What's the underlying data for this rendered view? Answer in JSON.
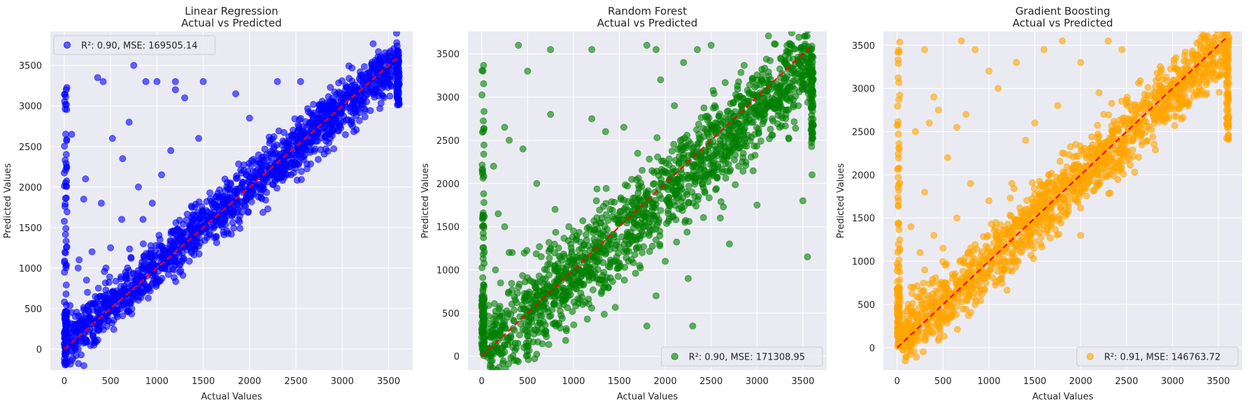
{
  "chart_data": [
    {
      "type": "scatter",
      "title": "Linear Regression\nActual vs Predicted",
      "xlabel": "Actual Values",
      "ylabel": "Predicted Values",
      "xlim": [
        -150,
        3760
      ],
      "ylim": [
        -260,
        3920
      ],
      "xticks": [
        0,
        500,
        1000,
        1500,
        2000,
        2500,
        3000,
        3500
      ],
      "yticks": [
        0,
        500,
        1000,
        1500,
        2000,
        2500,
        3000,
        3500
      ],
      "grid": true,
      "legend_position": "upper left",
      "series": [
        {
          "name": "R²: 0.90, MSE: 169505.14",
          "color": "#0000ff",
          "trend": {
            "slope": 0.98,
            "intercept": 40,
            "spread": 160
          },
          "points": [
            [
              750,
              3500
            ],
            [
              420,
              3300
            ],
            [
              360,
              3350
            ],
            [
              1200,
              3300
            ],
            [
              1000,
              3300
            ],
            [
              880,
              3300
            ],
            [
              1500,
              3300
            ],
            [
              2300,
              3300
            ],
            [
              2550,
              3300
            ],
            [
              1850,
              3150
            ],
            [
              1300,
              3100
            ],
            [
              2000,
              2850
            ],
            [
              230,
              2100
            ],
            [
              80,
              2650
            ],
            [
              630,
              2350
            ],
            [
              400,
              1800
            ],
            [
              520,
              2600
            ],
            [
              210,
              1850
            ],
            [
              1050,
              2150
            ],
            [
              300,
              1200
            ],
            [
              150,
              1000
            ],
            [
              800,
              2000
            ],
            [
              950,
              1800
            ],
            [
              1150,
              2450
            ],
            [
              1450,
              2600
            ],
            [
              700,
              2800
            ],
            [
              620,
              1600
            ],
            [
              240,
              850
            ],
            [
              160,
              1100
            ],
            [
              1200,
              3200
            ],
            [
              450,
              1000
            ],
            [
              850,
              1600
            ],
            [
              150,
              300
            ],
            [
              120,
              400
            ],
            [
              250,
              700
            ],
            [
              500,
              1250
            ]
          ]
        }
      ]
    },
    {
      "type": "scatter",
      "title": "Random Forest\nActual vs Predicted",
      "xlabel": "Actual Values",
      "ylabel": "Predicted Values",
      "xlim": [
        -150,
        3760
      ],
      "ylim": [
        -160,
        3760
      ],
      "xticks": [
        0,
        500,
        1000,
        1500,
        2000,
        2500,
        3000,
        3500
      ],
      "yticks": [
        0,
        500,
        1000,
        1500,
        2000,
        2500,
        3000,
        3500
      ],
      "grid": true,
      "legend_position": "lower right",
      "series": [
        {
          "name": "R²: 0.90, MSE: 171308.95",
          "color": "#008000",
          "trend": {
            "slope": 0.95,
            "intercept": 0,
            "spread": 260
          },
          "points": [
            [
              400,
              3600
            ],
            [
              750,
              3550
            ],
            [
              1200,
              3550
            ],
            [
              1800,
              3600
            ],
            [
              1900,
              3550
            ],
            [
              2350,
              3550
            ],
            [
              2500,
              3600
            ],
            [
              2200,
              3400
            ],
            [
              1950,
              3200
            ],
            [
              1550,
              2650
            ],
            [
              2100,
              2900
            ],
            [
              250,
              2650
            ],
            [
              500,
              3300
            ],
            [
              750,
              2800
            ],
            [
              1200,
              2750
            ],
            [
              1350,
              2600
            ],
            [
              130,
              2200
            ],
            [
              300,
              2500
            ],
            [
              450,
              2400
            ],
            [
              600,
              2000
            ],
            [
              1700,
              2350
            ],
            [
              1250,
              1800
            ],
            [
              1000,
              1450
            ],
            [
              250,
              1500
            ],
            [
              150,
              1000
            ],
            [
              300,
              1200
            ],
            [
              800,
              1700
            ],
            [
              2000,
              1100
            ],
            [
              2250,
              900
            ],
            [
              2700,
              1300
            ],
            [
              1900,
              700
            ],
            [
              1800,
              350
            ],
            [
              2300,
              350
            ],
            [
              3550,
              1150
            ],
            [
              3500,
              1800
            ],
            [
              3600,
              2100
            ],
            [
              3000,
              1750
            ],
            [
              2800,
              2200
            ],
            [
              1600,
              1100
            ],
            [
              1100,
              600
            ],
            [
              600,
              300
            ],
            [
              400,
              800
            ],
            [
              180,
              1650
            ],
            [
              950,
              1500
            ],
            [
              1400,
              1700
            ],
            [
              2600,
              1600
            ]
          ]
        }
      ]
    },
    {
      "type": "scatter",
      "title": "Gradient Boosting\nActual vs Predicted",
      "xlabel": "Actual Values",
      "ylabel": "Predicted Values",
      "xlim": [
        -150,
        3760
      ],
      "ylim": [
        -260,
        3660
      ],
      "xticks": [
        0,
        500,
        1000,
        1500,
        2000,
        2500,
        3000,
        3500
      ],
      "yticks": [
        0,
        500,
        1000,
        1500,
        2000,
        2500,
        3000,
        3500
      ],
      "grid": true,
      "legend_position": "lower right",
      "series": [
        {
          "name": "R²: 0.91, MSE: 146763.72",
          "color": "#ffa500",
          "trend": {
            "slope": 0.98,
            "intercept": 20,
            "spread": 180
          },
          "points": [
            [
              300,
              3450
            ],
            [
              700,
              3550
            ],
            [
              1000,
              3200
            ],
            [
              1300,
              3300
            ],
            [
              1800,
              3550
            ],
            [
              1600,
              3450
            ],
            [
              2000,
              3300
            ],
            [
              2300,
              3550
            ],
            [
              2450,
              3450
            ],
            [
              1100,
              3000
            ],
            [
              850,
              3450
            ],
            [
              400,
              2900
            ],
            [
              450,
              2750
            ],
            [
              750,
              2700
            ],
            [
              1500,
              2600
            ],
            [
              1750,
              2800
            ],
            [
              2200,
              2950
            ],
            [
              2250,
              2700
            ],
            [
              350,
              2600
            ],
            [
              200,
              2500
            ],
            [
              650,
              2550
            ],
            [
              550,
              2200
            ],
            [
              1400,
              2400
            ],
            [
              300,
              1800
            ],
            [
              800,
              1900
            ],
            [
              1000,
              1700
            ],
            [
              150,
              1400
            ],
            [
              250,
              1100
            ],
            [
              400,
              1300
            ],
            [
              650,
              1500
            ],
            [
              1200,
              1350
            ],
            [
              1400,
              1600
            ],
            [
              900,
              1000
            ],
            [
              150,
              700
            ],
            [
              300,
              900
            ],
            [
              500,
              1150
            ],
            [
              1850,
              1550
            ],
            [
              1650,
              2000
            ],
            [
              2000,
              1300
            ],
            [
              1250,
              1900
            ],
            [
              180,
              250
            ],
            [
              120,
              500
            ]
          ]
        }
      ]
    }
  ]
}
